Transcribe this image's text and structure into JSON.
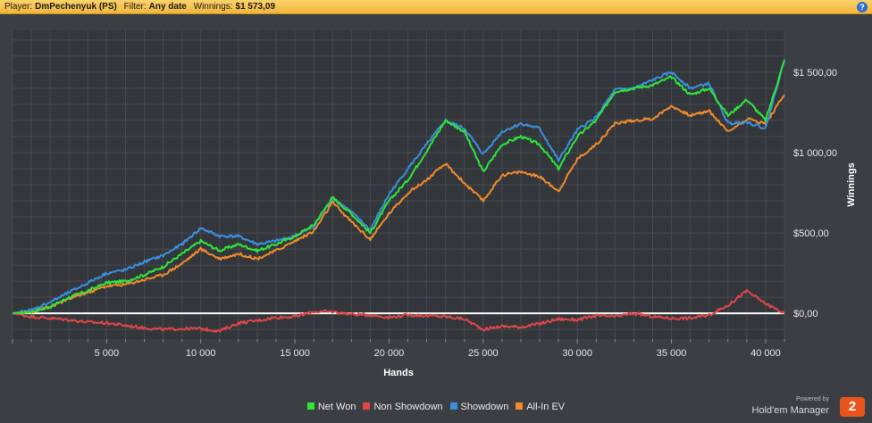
{
  "header": {
    "player_label": "Player:",
    "player_value": "DmPechenyuk (PS)",
    "filter_label": "Filter:",
    "filter_value": "Any date",
    "winnings_label": "Winnings:",
    "winnings_value": "$1 573,09",
    "help_icon": "?"
  },
  "brand": {
    "powered": "Powered by",
    "name": "Hold'em Manager",
    "logo": "2"
  },
  "colors": {
    "net_won": "#2ee53a",
    "non_showdown": "#e04646",
    "showdown": "#3a8fdd",
    "allin_ev": "#f08a2a",
    "zero_line": "#ffffff"
  },
  "chart_data": {
    "type": "line",
    "xlabel": "Hands",
    "ylabel": "Winnings",
    "xlim": [
      0,
      41000
    ],
    "ylim": [
      -160,
      1760
    ],
    "x_ticks": [
      5000,
      10000,
      15000,
      20000,
      25000,
      30000,
      35000,
      40000
    ],
    "x_tick_labels": [
      "5 000",
      "10 000",
      "15 000",
      "20 000",
      "25 000",
      "30 000",
      "35 000",
      "40 000"
    ],
    "y_ticks": [
      0,
      500,
      1000,
      1500
    ],
    "y_tick_labels": [
      "$0,00",
      "$500,00",
      "$1 000,00",
      "$1 500,00"
    ],
    "grid": true,
    "legend": "bottom",
    "x": [
      0,
      1000,
      2000,
      3000,
      4000,
      5000,
      6000,
      7000,
      8000,
      9000,
      10000,
      11000,
      12000,
      13000,
      14000,
      15000,
      16000,
      17000,
      18000,
      19000,
      20000,
      21000,
      22000,
      23000,
      24000,
      25000,
      26000,
      27000,
      28000,
      29000,
      30000,
      31000,
      32000,
      33000,
      34000,
      35000,
      36000,
      37000,
      38000,
      39000,
      40000,
      41000
    ],
    "series": [
      {
        "name": "Net Won",
        "color": "#2ee53a",
        "values": [
          0,
          10,
          40,
          100,
          140,
          190,
          200,
          240,
          290,
          370,
          450,
          390,
          430,
          390,
          430,
          480,
          550,
          720,
          620,
          500,
          700,
          830,
          1010,
          1200,
          1130,
          880,
          1050,
          1100,
          1050,
          900,
          1100,
          1200,
          1380,
          1400,
          1420,
          1470,
          1360,
          1400,
          1230,
          1330,
          1200,
          1573
        ]
      },
      {
        "name": "Non Showdown",
        "color": "#e04646",
        "values": [
          0,
          -20,
          -30,
          -40,
          -55,
          -60,
          -75,
          -90,
          -100,
          -95,
          -95,
          -110,
          -60,
          -45,
          -25,
          -20,
          10,
          10,
          -5,
          -10,
          -25,
          -10,
          -15,
          -20,
          -35,
          -100,
          -80,
          -85,
          -65,
          -35,
          -40,
          -15,
          -20,
          0,
          -20,
          -30,
          -30,
          -10,
          50,
          140,
          60,
          0
        ]
      },
      {
        "name": "Showdown",
        "color": "#3a8fdd",
        "values": [
          0,
          20,
          70,
          130,
          190,
          250,
          270,
          320,
          360,
          430,
          530,
          480,
          480,
          430,
          450,
          480,
          540,
          720,
          630,
          520,
          740,
          900,
          1050,
          1200,
          1150,
          990,
          1130,
          1180,
          1150,
          950,
          1140,
          1220,
          1390,
          1400,
          1450,
          1500,
          1400,
          1430,
          1180,
          1190,
          1150,
          1580
        ]
      },
      {
        "name": "All-In EV",
        "color": "#f08a2a",
        "values": [
          0,
          10,
          40,
          90,
          130,
          170,
          180,
          210,
          240,
          310,
          400,
          340,
          370,
          340,
          390,
          450,
          510,
          690,
          570,
          460,
          620,
          750,
          830,
          930,
          810,
          700,
          860,
          880,
          850,
          760,
          960,
          1050,
          1180,
          1200,
          1210,
          1290,
          1230,
          1260,
          1130,
          1210,
          1180,
          1360
        ]
      }
    ]
  }
}
